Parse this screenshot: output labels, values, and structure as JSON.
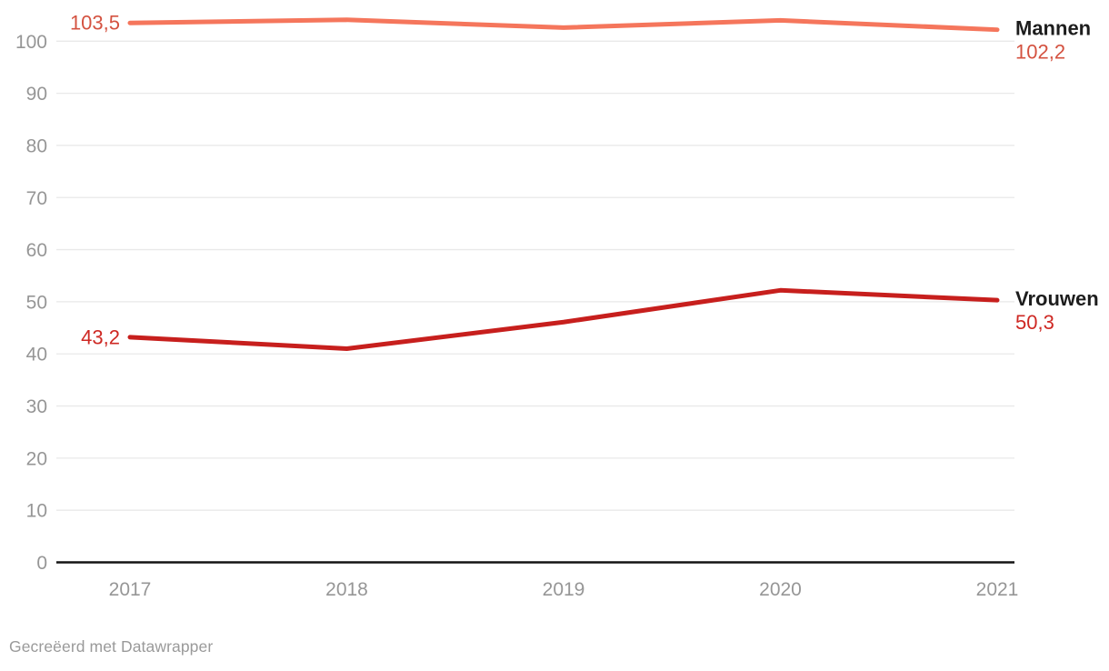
{
  "chart_data": {
    "type": "line",
    "x": [
      "2017",
      "2018",
      "2019",
      "2020",
      "2021"
    ],
    "series": [
      {
        "name": "Mannen",
        "values": [
          103.5,
          104.1,
          102.6,
          104.0,
          102.2
        ],
        "color": "#f5765c",
        "label_color": "#d45240",
        "first_label": "103,5",
        "last_label": "102,2"
      },
      {
        "name": "Vrouwen",
        "values": [
          43.2,
          41.0,
          46.1,
          52.2,
          50.3
        ],
        "color": "#c71f1d",
        "label_color": "#ce2823",
        "first_label": "43,2",
        "last_label": "50,3"
      }
    ],
    "yticks": [
      0,
      10,
      20,
      30,
      40,
      50,
      60,
      70,
      80,
      90,
      100
    ],
    "ylim": [
      0,
      108
    ],
    "grid": true,
    "legend_position": "right-of-line-ends",
    "title": "",
    "xlabel": "",
    "ylabel": ""
  },
  "footer": {
    "text": "Gecreëerd met Datawrapper"
  },
  "colors": {
    "background": "#ffffff",
    "axis_line": "#141414",
    "gridline": "#e9e9e9",
    "tick_label": "#969696",
    "legend_name": "#1d1d1d",
    "footer_text": "#9a9a9a"
  }
}
